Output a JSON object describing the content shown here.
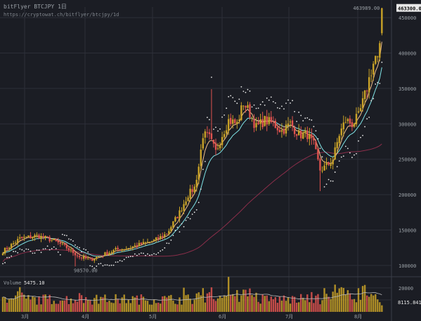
{
  "header": {
    "title": "bitFlyer BTCJPY 1日",
    "url": "https://cryptowat.ch/bitflyer/btcjpy/1d"
  },
  "colors": {
    "background": "#1b1d24",
    "grid": "#2c2f38",
    "candle_up": "#c9a227",
    "candle_down": "#e0534f",
    "ema_fast": "#f2c08a",
    "ema_slow": "#7fe3e6",
    "ma_long": "#8b2e4a",
    "sar": "#e9e9e9",
    "volume_ma": "#b9b9b9",
    "text": "#9aa0a6",
    "text_bright": "#e8e8e8"
  },
  "chart_data": {
    "type": "candlestick",
    "symbol": "bitFlyer BTCJPY 1日",
    "x_tick_labels": [
      "3月",
      "4月",
      "5月",
      "6月",
      "7月",
      "8月"
    ],
    "y_tick_values": [
      100000,
      150000,
      200000,
      250000,
      300000,
      350000,
      400000,
      450000
    ],
    "y_tick_labels": [
      "100000",
      "150000",
      "200000",
      "250000",
      "300000",
      "350000",
      "400000",
      "450000"
    ],
    "ylim": [
      88000,
      465000
    ],
    "high_label": "463989.00",
    "low_label": "98570.00",
    "last_price_label": "463300.00",
    "close_anchors": [
      [
        0,
        120000
      ],
      [
        8,
        138000
      ],
      [
        16,
        142000
      ],
      [
        24,
        135000
      ],
      [
        30,
        125000
      ],
      [
        36,
        112000
      ],
      [
        41,
        108000
      ],
      [
        47,
        115000
      ],
      [
        53,
        122000
      ],
      [
        59,
        125000
      ],
      [
        65,
        130000
      ],
      [
        71,
        135000
      ],
      [
        77,
        145000
      ],
      [
        83,
        175000
      ],
      [
        87,
        200000
      ],
      [
        90,
        210000
      ],
      [
        92,
        240000
      ],
      [
        94,
        285000
      ],
      [
        97,
        280000
      ],
      [
        100,
        260000
      ],
      [
        103,
        285000
      ],
      [
        106,
        305000
      ],
      [
        110,
        300000
      ],
      [
        113,
        330000
      ],
      [
        116,
        315000
      ],
      [
        119,
        295000
      ],
      [
        123,
        305000
      ],
      [
        127,
        300000
      ],
      [
        131,
        290000
      ],
      [
        135,
        300000
      ],
      [
        139,
        285000
      ],
      [
        143,
        285000
      ],
      [
        146,
        270000
      ],
      [
        149,
        235000
      ],
      [
        152,
        240000
      ],
      [
        155,
        250000
      ],
      [
        158,
        285000
      ],
      [
        161,
        305000
      ],
      [
        164,
        300000
      ],
      [
        167,
        310000
      ],
      [
        170,
        340000
      ],
      [
        173,
        375000
      ],
      [
        175,
        395000
      ],
      [
        176,
        390000
      ],
      [
        177,
        405000
      ],
      [
        178,
        463300
      ]
    ],
    "volume": {
      "label": "Volume",
      "last_value": "5475.10",
      "ma_value": "8115.8413",
      "y_tick_values": [
        10000,
        20000
      ],
      "y_tick_labels": [
        "10000",
        "20000"
      ],
      "ylim": [
        0,
        27000
      ]
    }
  }
}
